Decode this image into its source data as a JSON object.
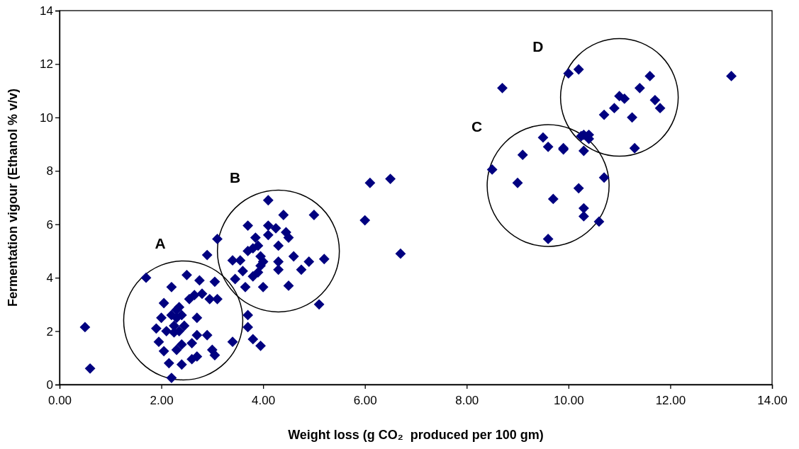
{
  "chart_data": {
    "type": "scatter",
    "xlabel": "Weight loss (g CO₂  produced per 100 gm)",
    "ylabel": "Fermentation vigour (Ethanol % v/v)",
    "xlim": [
      0,
      14
    ],
    "ylim": [
      0,
      14
    ],
    "xticks": [
      {
        "value": 0,
        "label": "0.00"
      },
      {
        "value": 2,
        "label": "2.00"
      },
      {
        "value": 4,
        "label": "4.00"
      },
      {
        "value": 6,
        "label": "6.00"
      },
      {
        "value": 8,
        "label": "8.00"
      },
      {
        "value": 10,
        "label": "10.00"
      },
      {
        "value": 12,
        "label": "12.00"
      },
      {
        "value": 14,
        "label": "14.00"
      }
    ],
    "yticks": [
      0,
      2,
      4,
      6,
      8,
      10,
      12,
      14
    ],
    "grid": false,
    "marker": "diamond",
    "annotations": [
      "A",
      "B",
      "C",
      "D"
    ],
    "series": [
      {
        "color": "#000080",
        "x": [
          0.5,
          0.6,
          1.7,
          1.9,
          1.95,
          2.0,
          2.05,
          2.05,
          2.1,
          2.15,
          2.2,
          2.2,
          2.2,
          2.25,
          2.3,
          2.3,
          2.35,
          2.4,
          2.4,
          2.4,
          2.45,
          2.5,
          2.55,
          2.6,
          2.6,
          2.65,
          2.7,
          2.7,
          2.7,
          2.75,
          2.8,
          2.9,
          2.95,
          3.0,
          3.05,
          3.1,
          3.05,
          2.9,
          3.1,
          3.4,
          3.7,
          3.7,
          3.8,
          3.95,
          2.3,
          2.35,
          2.25,
          3.4,
          3.45,
          3.55,
          3.6,
          3.65,
          3.7,
          3.7,
          3.8,
          3.8,
          3.85,
          3.9,
          3.95,
          3.9,
          3.95,
          4.0,
          4.0,
          4.1,
          4.1,
          4.1,
          4.25,
          4.3,
          4.3,
          4.3,
          4.4,
          4.45,
          4.5,
          4.5,
          4.6,
          4.75,
          4.9,
          5.0,
          5.1,
          5.2,
          6.0,
          6.1,
          6.5,
          6.7,
          8.5,
          8.7,
          9.0,
          9.1,
          9.5,
          9.6,
          9.6,
          9.7,
          9.9,
          9.9,
          10.2,
          10.3,
          10.3,
          10.3,
          10.6,
          10.7,
          10.0,
          10.2,
          10.25,
          10.3,
          10.4,
          10.4,
          10.7,
          10.9,
          11.0,
          11.1,
          11.25,
          11.3,
          11.4,
          11.6,
          11.7,
          11.8,
          13.2
        ],
        "values": [
          2.15,
          0.6,
          4.0,
          2.1,
          1.6,
          2.5,
          1.25,
          3.05,
          2.0,
          0.8,
          2.6,
          0.25,
          3.65,
          2.2,
          1.3,
          2.8,
          2.0,
          2.6,
          0.75,
          1.5,
          2.2,
          4.1,
          3.2,
          1.55,
          0.95,
          3.35,
          2.5,
          1.05,
          1.85,
          3.9,
          3.4,
          1.85,
          3.2,
          1.3,
          1.1,
          3.2,
          3.85,
          4.85,
          5.45,
          1.6,
          2.6,
          2.15,
          1.7,
          1.45,
          2.5,
          2.9,
          1.95,
          4.65,
          3.95,
          4.65,
          4.25,
          3.65,
          5.0,
          5.95,
          4.05,
          5.1,
          5.5,
          4.2,
          4.45,
          5.2,
          4.8,
          3.65,
          4.6,
          5.95,
          5.6,
          6.9,
          5.85,
          4.6,
          4.3,
          5.2,
          6.35,
          5.7,
          5.5,
          3.7,
          4.8,
          4.3,
          4.6,
          6.35,
          3.0,
          4.7,
          6.15,
          7.55,
          7.7,
          4.9,
          8.05,
          11.1,
          7.55,
          8.6,
          9.25,
          8.9,
          5.45,
          6.95,
          8.85,
          8.8,
          7.35,
          8.75,
          6.6,
          6.3,
          6.1,
          7.75,
          11.65,
          11.8,
          9.3,
          9.35,
          9.2,
          9.35,
          10.1,
          10.35,
          10.8,
          10.7,
          10.0,
          8.85,
          11.1,
          11.55,
          10.65,
          10.35,
          11.55
        ]
      }
    ]
  }
}
